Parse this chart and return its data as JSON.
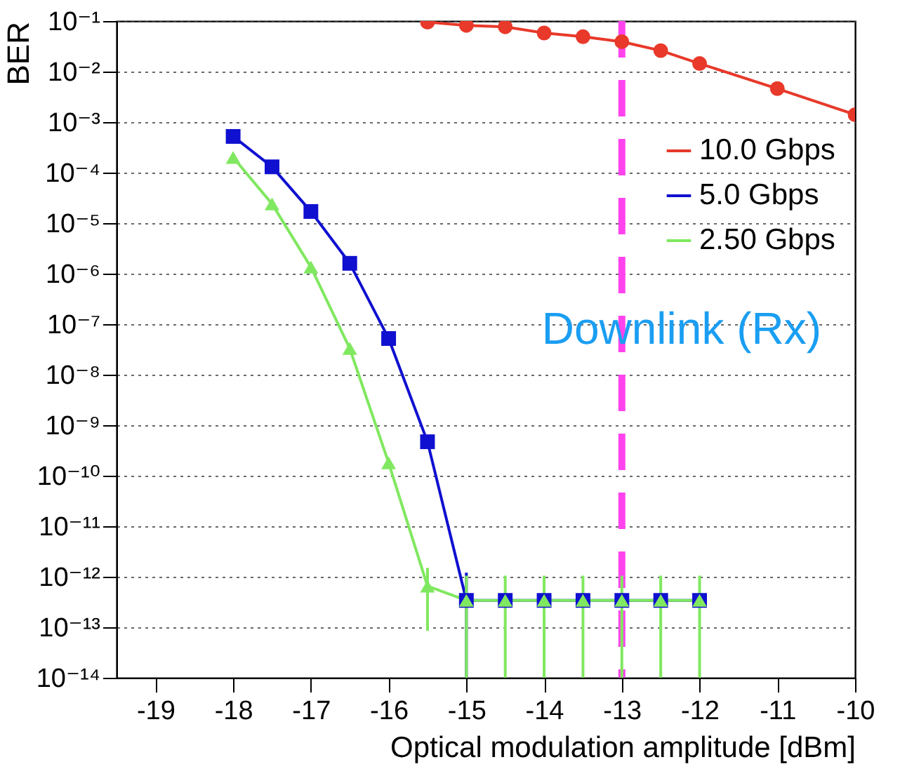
{
  "chart_data": {
    "type": "line",
    "xlabel": "Optical modulation amplitude [dBm]",
    "ylabel": "BER",
    "xlim": [
      -19.5,
      -10
    ],
    "xticks": [
      -19,
      -18,
      -17,
      -16,
      -15,
      -14,
      -13,
      -12,
      -11,
      -10
    ],
    "ylim": [
      1e-14,
      0.1
    ],
    "log": "y",
    "yticks": [
      {
        "value": 1e-14,
        "label": "10⁻¹⁴"
      },
      {
        "value": 1e-13,
        "label": "10⁻¹³"
      },
      {
        "value": 1e-12,
        "label": "10⁻¹²"
      },
      {
        "value": 1e-11,
        "label": "10⁻¹¹"
      },
      {
        "value": 1e-10,
        "label": "10⁻¹⁰"
      },
      {
        "value": 1e-09,
        "label": "10⁻⁹"
      },
      {
        "value": 1e-08,
        "label": "10⁻⁸"
      },
      {
        "value": 1e-07,
        "label": "10⁻⁷"
      },
      {
        "value": 1e-06,
        "label": "10⁻⁶"
      },
      {
        "value": 1e-05,
        "label": "10⁻⁵"
      },
      {
        "value": 0.0001,
        "label": "10⁻⁴"
      },
      {
        "value": 0.001,
        "label": "10⁻³"
      },
      {
        "value": 0.01,
        "label": "10⁻²"
      },
      {
        "value": 0.1,
        "label": "10⁻¹"
      }
    ],
    "grid": "y",
    "legend": "top right",
    "line_style": "solid",
    "series": [
      {
        "name": "10.0 Gbps",
        "color": "#e8392a",
        "marker": "circle",
        "x": [
          -15.5,
          -15,
          -14.5,
          -14,
          -13.5,
          -13,
          -12.5,
          -12,
          -11,
          -10
        ],
        "values": [
          0.095,
          0.082,
          0.077,
          0.058,
          0.049,
          0.039,
          0.026,
          0.0144,
          0.0046,
          0.0014
        ]
      },
      {
        "name": "5.0 Gbps",
        "color": "#1010d0",
        "marker": "square",
        "x": [
          -18,
          -17.5,
          -17,
          -16.5,
          -16,
          -15.5,
          -15,
          -14.5,
          -14,
          -13.5,
          -13,
          -12.5,
          -12
        ],
        "values": [
          0.00052,
          0.00013,
          1.7e-05,
          1.6e-06,
          5.2e-08,
          4.7e-10,
          3.4e-13,
          3.4e-13,
          3.4e-13,
          3.4e-13,
          3.4e-13,
          3.4e-13,
          3.4e-13
        ],
        "errors": [
          null,
          null,
          null,
          null,
          null,
          null,
          [
            1e-14,
            1.2e-12
          ],
          null,
          null,
          null,
          null,
          null,
          null
        ]
      },
      {
        "name": "2.50 Gbps",
        "color": "#80e860",
        "marker": "triangle",
        "x": [
          -18,
          -17.5,
          -17,
          -16.5,
          -16,
          -15.5,
          -15,
          -14.5,
          -14,
          -13.5,
          -13,
          -12.5,
          -12
        ],
        "values": [
          0.0002,
          2.4e-05,
          1.35e-06,
          3.3e-08,
          1.8e-10,
          6.5e-13,
          3.4e-13,
          3.4e-13,
          3.4e-13,
          3.4e-13,
          3.4e-13,
          3.4e-13,
          3.4e-13
        ],
        "errors": [
          null,
          null,
          null,
          null,
          null,
          [
            8.5e-14,
            1.5e-12
          ],
          [
            1e-14,
            1.05e-12
          ],
          [
            1e-14,
            1.05e-12
          ],
          [
            1e-14,
            1.05e-12
          ],
          [
            1e-14,
            1.05e-12
          ],
          [
            1e-14,
            1.05e-12
          ],
          [
            1e-14,
            1.05e-12
          ],
          [
            1e-14,
            1.05e-12
          ]
        ]
      }
    ],
    "ref_lines": [
      {
        "axis": "x",
        "value": -13,
        "color": "#ff44ee",
        "line_style": "dashed"
      }
    ],
    "annotations": [
      "Downlink (Rx)"
    ]
  }
}
